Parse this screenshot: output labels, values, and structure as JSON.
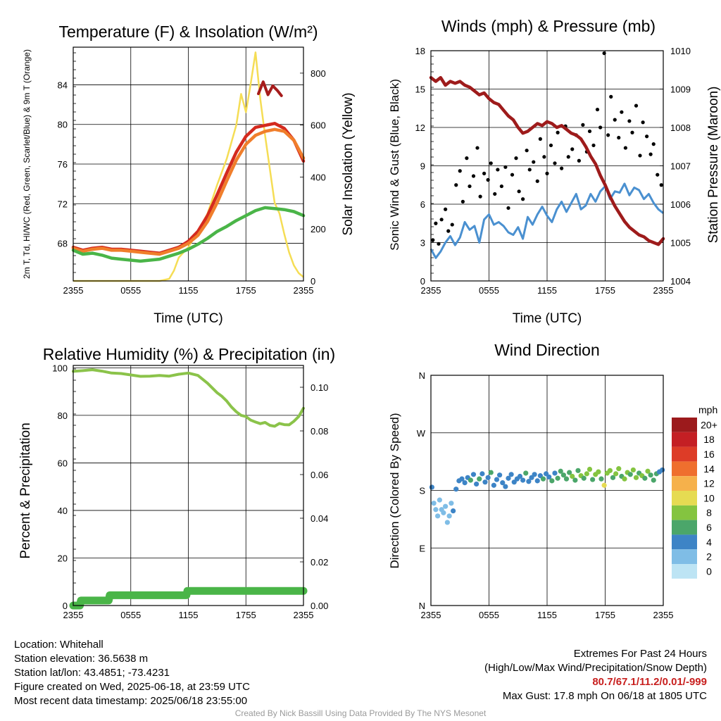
{
  "chart_data": [
    {
      "type": "line",
      "title": "Temperature (F) & Insolation (W/m²)",
      "xlabel": "Time (UTC)",
      "ylabel": "2m T, Td, HI/WC (Red, Green, Scarlet/Blue) & 9m T (Orange)",
      "y2label": "Solar Insolation (Yellow)",
      "x_ticks": [
        "2355",
        "0555",
        "1155",
        "1755",
        "2355"
      ],
      "y_ticks": [
        "68",
        "72",
        "76",
        "80",
        "84"
      ],
      "y2_ticks": [
        "0",
        "200",
        "400",
        "600",
        "800"
      ],
      "xlim": [
        0,
        24
      ],
      "ylim": [
        64.2,
        87.8
      ],
      "y2lim": [
        0,
        900
      ],
      "grid": true,
      "series": [
        {
          "color": "#d42a1e",
          "x": [
            0,
            1,
            2,
            3,
            4,
            5,
            6,
            7,
            8,
            9,
            10,
            11,
            12,
            13,
            14,
            15,
            16,
            17,
            18,
            19,
            20,
            21,
            22,
            23,
            24
          ],
          "y": [
            67.6,
            67.3,
            67.5,
            67.6,
            67.4,
            67.4,
            67.3,
            67.2,
            67.1,
            67.0,
            67.3,
            67.6,
            68.2,
            69.2,
            70.8,
            72.9,
            75.1,
            77.2,
            78.8,
            79.7,
            79.9,
            80.1,
            79.6,
            78.4,
            76.3
          ]
        },
        {
          "color": "#f07e2b",
          "x": [
            0,
            1,
            2,
            3,
            4,
            5,
            6,
            7,
            8,
            9,
            10,
            11,
            12,
            13,
            14,
            15,
            16,
            17,
            18,
            19,
            20,
            21,
            22,
            23,
            24
          ],
          "y": [
            67.5,
            67.2,
            67.4,
            67.5,
            67.3,
            67.3,
            67.2,
            67.1,
            67.0,
            66.9,
            67.2,
            67.5,
            68.0,
            68.8,
            70.2,
            72.1,
            74.3,
            76.4,
            78.0,
            78.9,
            79.3,
            79.5,
            79.3,
            78.4,
            76.6
          ]
        },
        {
          "color": "#4ab548",
          "x": [
            0,
            1,
            2,
            3,
            4,
            5,
            6,
            7,
            8,
            9,
            10,
            11,
            12,
            13,
            14,
            15,
            16,
            17,
            18,
            19,
            20,
            21,
            22,
            23,
            24
          ],
          "y": [
            67.3,
            66.9,
            67.0,
            66.8,
            66.5,
            66.4,
            66.3,
            66.2,
            66.3,
            66.4,
            66.7,
            67.0,
            67.4,
            67.9,
            68.5,
            69.2,
            69.7,
            70.3,
            70.8,
            71.3,
            71.6,
            71.5,
            71.4,
            71.2,
            70.8
          ]
        },
        {
          "color": "#a61c1c",
          "x": [
            19.3,
            19.8,
            20.3,
            20.8,
            21.3,
            21.7
          ],
          "y": [
            83.1,
            84.3,
            83.0,
            83.9,
            83.4,
            82.9
          ]
        }
      ],
      "insolation": {
        "color": "#f5dd55",
        "x": [
          0,
          9,
          10,
          10.5,
          11,
          12,
          13,
          14,
          15,
          16,
          17,
          17.5,
          18,
          18.5,
          19,
          19.5,
          20,
          20.5,
          21,
          21.5,
          22,
          22.5,
          23,
          23.5,
          24
        ],
        "y": [
          0,
          0,
          8,
          40,
          90,
          130,
          190,
          260,
          370,
          470,
          600,
          720,
          650,
          760,
          880,
          700,
          560,
          430,
          300,
          260,
          180,
          110,
          60,
          30,
          15
        ]
      }
    },
    {
      "type": "line",
      "title": "Winds (mph) & Pressure (mb)",
      "xlabel": "Time (UTC)",
      "ylabel": "Sonic Wind & Gust (Blue, Black)",
      "y2label": "Station Pressure (Maroon)",
      "x_ticks": [
        "2355",
        "0555",
        "1155",
        "1755",
        "2355"
      ],
      "y_ticks": [
        "0",
        "3",
        "6",
        "9",
        "12",
        "15",
        "18"
      ],
      "y2_ticks": [
        "1004",
        "1005",
        "1006",
        "1007",
        "1008",
        "1009",
        "1010"
      ],
      "xlim": [
        0,
        24
      ],
      "ylim": [
        0,
        18
      ],
      "y2lim": [
        1004,
        1010
      ],
      "grid": true,
      "sustained_wind": {
        "color": "#4a90d0",
        "x": [
          0,
          0.5,
          1,
          1.5,
          2,
          2.5,
          3,
          3.5,
          4,
          4.5,
          5,
          5.5,
          6,
          6.5,
          7,
          7.5,
          8,
          8.5,
          9,
          9.5,
          10,
          10.5,
          11,
          11.5,
          12,
          12.5,
          13,
          13.5,
          14,
          14.5,
          15,
          15.5,
          16,
          16.5,
          17,
          17.5,
          18,
          18.5,
          19,
          19.5,
          20,
          20.5,
          21,
          21.5,
          22,
          22.5,
          23,
          23.5,
          24
        ],
        "y": [
          2.5,
          1.8,
          2.3,
          3.0,
          3.5,
          2.8,
          3.4,
          4.6,
          4.0,
          4.3,
          3.0,
          4.8,
          5.2,
          4.4,
          4.6,
          4.3,
          3.8,
          3.6,
          4.2,
          3.3,
          5.0,
          4.4,
          5.2,
          5.8,
          5.1,
          4.6,
          5.6,
          6.2,
          5.4,
          6.1,
          6.8,
          5.6,
          5.9,
          6.8,
          6.2,
          7.0,
          7.4,
          6.4,
          7.0,
          6.9,
          7.6,
          6.7,
          7.3,
          7.1,
          6.4,
          6.8,
          6.1,
          5.6,
          5.3
        ]
      },
      "gusts": {
        "color": "#000000",
        "x": [
          0.2,
          0.5,
          0.8,
          1.1,
          1.5,
          1.8,
          2.2,
          2.6,
          3.0,
          3.3,
          3.7,
          4.0,
          4.4,
          4.8,
          5.1,
          5.5,
          5.9,
          6.2,
          6.6,
          6.9,
          7.3,
          7.7,
          8.0,
          8.4,
          8.8,
          9.1,
          9.5,
          9.9,
          10.2,
          10.6,
          11.0,
          11.3,
          11.7,
          12.0,
          12.4,
          12.8,
          13.1,
          13.5,
          13.9,
          14.2,
          14.6,
          15.0,
          15.3,
          15.7,
          16.1,
          16.4,
          16.8,
          17.2,
          17.5,
          17.9,
          18.3,
          18.6,
          19.0,
          19.4,
          19.7,
          20.1,
          20.5,
          20.8,
          21.2,
          21.6,
          21.9,
          22.3,
          22.7,
          23.0,
          23.4,
          23.8
        ],
        "y": [
          3.2,
          4.5,
          2.9,
          4.8,
          5.6,
          3.9,
          4.4,
          7.5,
          8.6,
          6.2,
          9.6,
          7.4,
          8.2,
          10.4,
          6.6,
          8.4,
          7.9,
          9.2,
          6.8,
          8.7,
          7.4,
          8.9,
          5.7,
          8.3,
          9.6,
          7.0,
          6.4,
          10.2,
          8.7,
          9.3,
          7.8,
          11.1,
          9.7,
          8.4,
          10.6,
          9.2,
          11.6,
          8.8,
          12.1,
          9.7,
          10.3,
          11.4,
          9.4,
          12.2,
          10.1,
          11.7,
          10.6,
          13.4,
          12.0,
          17.8,
          11.4,
          14.4,
          12.6,
          11.2,
          13.2,
          10.4,
          12.5,
          11.6,
          13.7,
          9.8,
          12.4,
          11.3,
          9.9,
          10.7,
          8.3,
          7.5
        ]
      },
      "pressure": {
        "color": "#9e1b1b",
        "x": [
          0,
          0.5,
          1,
          1.5,
          2,
          2.5,
          3,
          3.5,
          4,
          4.5,
          5,
          5.5,
          6,
          6.5,
          7,
          7.5,
          8,
          8.5,
          9,
          9.5,
          10,
          10.5,
          11,
          11.5,
          12,
          12.5,
          13,
          13.5,
          14,
          14.5,
          15,
          15.5,
          16,
          16.5,
          17,
          17.5,
          18,
          18.5,
          19,
          19.5,
          20,
          20.5,
          21,
          21.5,
          22,
          22.5,
          23,
          23.5,
          24
        ],
        "y": [
          1009.3,
          1009.2,
          1009.3,
          1009.1,
          1009.2,
          1009.15,
          1009.2,
          1009.1,
          1009.05,
          1008.95,
          1008.85,
          1008.9,
          1008.75,
          1008.65,
          1008.6,
          1008.45,
          1008.3,
          1008.2,
          1008.0,
          1007.85,
          1007.9,
          1008.0,
          1008.1,
          1008.05,
          1008.15,
          1008.1,
          1008.0,
          1008.05,
          1007.95,
          1007.85,
          1007.8,
          1007.7,
          1007.5,
          1007.25,
          1007.05,
          1006.75,
          1006.5,
          1006.2,
          1005.95,
          1005.75,
          1005.55,
          1005.4,
          1005.3,
          1005.2,
          1005.15,
          1005.05,
          1005.0,
          1004.95,
          1005.1
        ]
      }
    },
    {
      "type": "line",
      "title": "Relative Humidity (%) & Precipitation (in)",
      "xlabel": "",
      "ylabel": "Percent & Precipitation",
      "x_ticks": [
        "2355",
        "0555",
        "1155",
        "1755",
        "2355"
      ],
      "y_ticks": [
        "0",
        "20",
        "40",
        "60",
        "80",
        "100"
      ],
      "y2_ticks": [
        "0.00",
        "0.02",
        "0.04",
        "0.06",
        "0.08",
        "0.10"
      ],
      "xlim": [
        0,
        24
      ],
      "ylim": [
        0,
        101
      ],
      "y2lim": [
        0,
        0.11
      ],
      "grid": true,
      "humidity": {
        "color": "#8bc34a",
        "x": [
          0,
          1,
          2,
          3,
          4,
          5,
          6,
          7,
          8,
          9,
          10,
          11,
          12,
          13,
          14,
          15,
          15.5,
          16,
          16.5,
          17,
          17.5,
          18,
          18.5,
          19,
          19.5,
          20,
          20.5,
          21,
          21.5,
          22,
          22.5,
          23,
          23.5,
          24
        ],
        "y": [
          98.5,
          98.8,
          99.2,
          98.6,
          97.8,
          97.6,
          97.0,
          96.4,
          96.5,
          96.8,
          96.5,
          97.3,
          97.8,
          96.8,
          93.5,
          89.5,
          88.0,
          86.0,
          83.5,
          81.5,
          80.0,
          79.5,
          78.0,
          77.2,
          76.5,
          77.0,
          75.8,
          75.4,
          76.6,
          76.1,
          76.0,
          77.5,
          79.5,
          83.0
        ]
      },
      "precipitation": {
        "color": "#4ab548",
        "x": [
          0,
          0.7,
          0.8,
          3.7,
          3.8,
          11.8,
          11.9,
          24
        ],
        "y": [
          0.0,
          0.0,
          0.0023,
          0.0023,
          0.0047,
          0.0047,
          0.0067,
          0.0067
        ]
      }
    },
    {
      "type": "scatter",
      "title": "Wind Direction",
      "xlabel": "",
      "ylabel": "Direction (Colored By Speed)",
      "x_ticks": [
        "2355",
        "0555",
        "1155",
        "1755",
        "2355"
      ],
      "y_ticks": [
        "N",
        "E",
        "S",
        "W",
        "N"
      ],
      "xlim": [
        0,
        24
      ],
      "ylim": [
        0,
        360
      ],
      "grid": true,
      "legend": {
        "title": "mph",
        "placement": "right",
        "labels": [
          "0",
          "2",
          "4",
          "6",
          "8",
          "10",
          "12",
          "14",
          "16",
          "18",
          "20+"
        ],
        "colors": [
          "#bde4f4",
          "#7fbde6",
          "#3d84c6",
          "#4ba66a",
          "#84c440",
          "#e6db52",
          "#f6b14b",
          "#ef6f2e",
          "#dd3c27",
          "#c41f24",
          "#9c1a1c"
        ]
      },
      "points": {
        "x": [
          0.1,
          0.3,
          0.5,
          0.7,
          0.9,
          1.1,
          1.3,
          1.5,
          1.7,
          1.9,
          2.1,
          2.3,
          2.6,
          2.9,
          3.2,
          3.5,
          3.8,
          4.1,
          4.4,
          4.7,
          5.0,
          5.3,
          5.6,
          5.9,
          6.2,
          6.5,
          6.8,
          7.1,
          7.4,
          7.7,
          8.0,
          8.3,
          8.6,
          8.9,
          9.2,
          9.5,
          9.8,
          10.1,
          10.4,
          10.7,
          11.0,
          11.3,
          11.6,
          11.9,
          12.2,
          12.5,
          12.8,
          13.1,
          13.4,
          13.7,
          14.0,
          14.3,
          14.6,
          14.9,
          15.2,
          15.5,
          15.8,
          16.1,
          16.4,
          16.7,
          17.0,
          17.3,
          17.6,
          17.9,
          18.2,
          18.5,
          18.8,
          19.1,
          19.4,
          19.7,
          20.0,
          20.3,
          20.6,
          20.9,
          21.2,
          21.5,
          21.8,
          22.1,
          22.4,
          22.7,
          23.0,
          23.3,
          23.6,
          23.9
        ],
        "y": [
          185,
          160,
          150,
          140,
          165,
          150,
          145,
          155,
          130,
          140,
          160,
          148,
          182,
          195,
          198,
          192,
          200,
          196,
          205,
          190,
          198,
          206,
          193,
          200,
          208,
          188,
          197,
          204,
          192,
          186,
          199,
          205,
          193,
          198,
          202,
          196,
          207,
          194,
          200,
          205,
          195,
          203,
          198,
          206,
          201,
          195,
          207,
          199,
          210,
          204,
          198,
          208,
          202,
          196,
          211,
          203,
          199,
          206,
          213,
          197,
          205,
          209,
          198,
          188,
          207,
          211,
          200,
          206,
          214,
          202,
          198,
          208,
          205,
          212,
          200,
          207,
          203,
          199,
          210,
          204,
          196,
          206,
          209,
          212
        ],
        "speed": [
          3,
          2,
          2,
          1,
          2,
          2,
          1,
          2,
          2,
          1,
          2,
          3,
          4,
          4,
          4,
          4,
          4,
          5,
          4,
          4,
          6,
          4,
          4,
          4,
          5,
          3,
          4,
          4,
          4,
          3,
          4,
          4,
          4,
          4,
          4,
          4,
          5,
          4,
          4,
          4,
          4,
          4,
          5,
          4,
          4,
          5,
          4,
          6,
          5,
          6,
          5,
          6,
          7,
          6,
          6,
          8,
          6,
          7,
          8,
          6,
          7,
          8,
          6,
          10,
          7,
          8,
          6,
          7,
          8,
          6,
          7,
          8,
          6,
          7,
          8,
          6,
          7,
          6,
          8,
          6,
          5,
          6,
          4,
          4
        ]
      }
    }
  ],
  "info_left": {
    "location": "Location: Whitehall",
    "elevation": "Station elevation: 36.5638 m",
    "latlon": "Station lat/lon: 43.4851; -73.4231",
    "created": "Figure created on Wed, 2025-06-18, at 23:59 UTC",
    "recent": "Most recent data timestamp: 2025/06/18 23:55:00"
  },
  "info_right": {
    "extremes_title": "Extremes For Past 24 Hours",
    "extremes_desc": "(High/Low/Max Wind/Precipitation/Snow Depth)",
    "extremes_values": "80.7/67.1/11.2/0.01/-999",
    "max_gust": "Max Gust: 17.8 mph On 06/18 at 1805 UTC"
  },
  "credit": "Created By Nick Bassill Using Data Provided By The NYS Mesonet"
}
